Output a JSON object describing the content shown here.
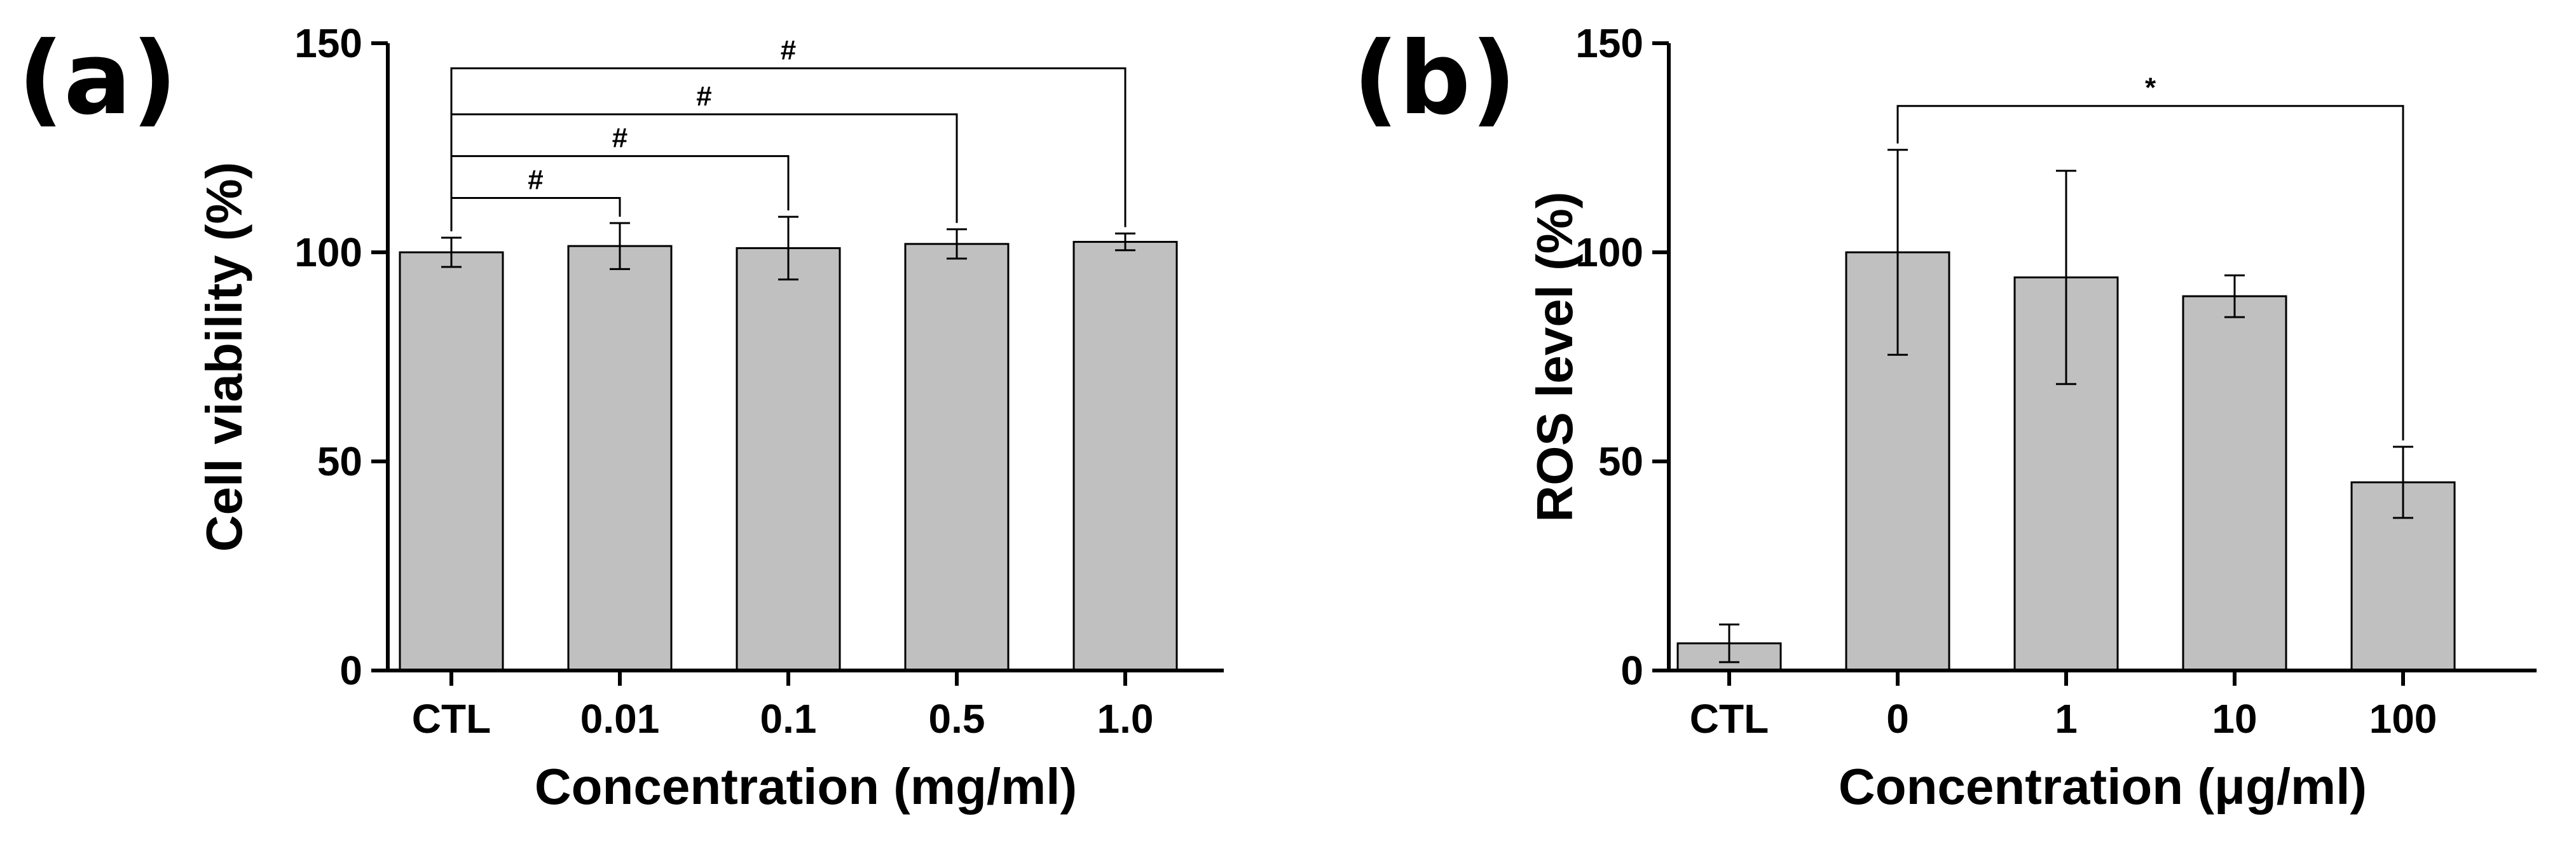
{
  "figure_colors": {
    "bar_fill": "#c0c0c0",
    "stroke": "#000000",
    "background": "#ffffff"
  },
  "chart_data": [
    {
      "type": "bar",
      "panel_label": "(a)",
      "categories": [
        "CTL",
        "0.01",
        "0.1",
        "0.5",
        "1.0"
      ],
      "values": [
        100,
        101.5,
        101,
        102,
        102.5
      ],
      "errors": [
        3.5,
        5.5,
        7.5,
        3.5,
        2
      ],
      "xlabel": "Concentration (mg/ml)",
      "ylabel": "Cell viability (%)",
      "ylim": [
        0,
        150
      ],
      "yticks": [
        0,
        50,
        100,
        150
      ],
      "grid": false,
      "significance": [
        {
          "from": 0,
          "to": 1,
          "label": "#",
          "y": 113
        },
        {
          "from": 0,
          "to": 2,
          "label": "#",
          "y": 123
        },
        {
          "from": 0,
          "to": 3,
          "label": "#",
          "y": 133
        },
        {
          "from": 0,
          "to": 4,
          "label": "#",
          "y": 144
        }
      ]
    },
    {
      "type": "bar",
      "panel_label": "(b)",
      "categories": [
        "CTL",
        "0",
        "1",
        "10",
        "100"
      ],
      "values": [
        6.5,
        100,
        94,
        89.5,
        45
      ],
      "errors": [
        4.5,
        24.5,
        25.5,
        5,
        8.5
      ],
      "xlabel": "Concentration (μg/ml)",
      "ylabel": "ROS level (%)",
      "ylim": [
        0,
        150
      ],
      "yticks": [
        0,
        50,
        100,
        150
      ],
      "grid": false,
      "significance": [
        {
          "from": 1,
          "to": 4,
          "label": "*",
          "y": 135
        }
      ]
    }
  ]
}
